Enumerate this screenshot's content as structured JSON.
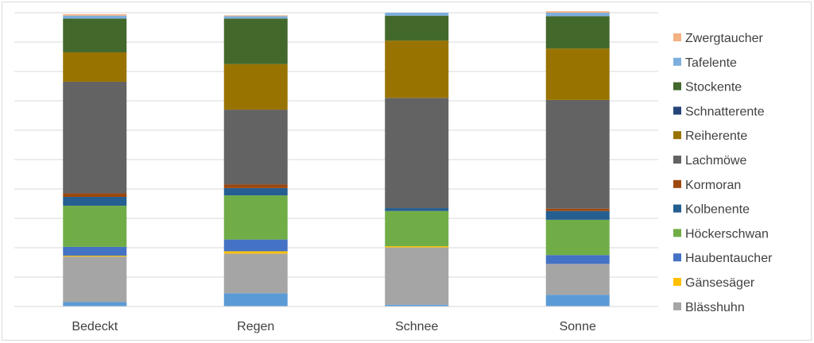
{
  "chart_data": {
    "type": "bar",
    "stacked": true,
    "percent_stacked": true,
    "categories": [
      "Bedeckt",
      "Regen",
      "Schnee",
      "Sonne"
    ],
    "ylim": [
      0,
      1
    ],
    "grid": true,
    "legend_position": "right",
    "series": [
      {
        "name": "Blässhuhn",
        "color": "#a5a5a5",
        "values": [
          0.155,
          0.135,
          0.195,
          0.105
        ]
      },
      {
        "name": "Gänsesäger",
        "color": "#ffc000",
        "values": [
          0.003,
          0.008,
          0.004,
          0.0
        ]
      },
      {
        "name": "Haubentaucher",
        "color": "#4472c4",
        "values": [
          0.03,
          0.04,
          0.0,
          0.03
        ]
      },
      {
        "name": "Höckerschwan",
        "color": "#70ad47",
        "values": [
          0.14,
          0.15,
          0.12,
          0.12
        ]
      },
      {
        "name": "Kolbenente",
        "color": "#255e91",
        "values": [
          0.03,
          0.025,
          0.01,
          0.03
        ]
      },
      {
        "name": "Kormoran",
        "color": "#9e480e",
        "values": [
          0.012,
          0.012,
          0.0,
          0.008
        ]
      },
      {
        "name": "Lachmöwe",
        "color": "#636363",
        "values": [
          0.38,
          0.255,
          0.375,
          0.37
        ]
      },
      {
        "name": "Reiherente",
        "color": "#997300",
        "values": [
          0.1,
          0.155,
          0.195,
          0.175
        ]
      },
      {
        "name": "Schnatterente",
        "color": "#264478",
        "values": [
          0.0,
          0.0,
          0.0,
          0.0
        ]
      },
      {
        "name": "Stockente",
        "color": "#43682b",
        "values": [
          0.115,
          0.155,
          0.085,
          0.11
        ]
      },
      {
        "name": "Tafelente",
        "color": "#7cafdd",
        "values": [
          0.01,
          0.008,
          0.01,
          0.012
        ]
      },
      {
        "name": "Zwergtaucher",
        "color": "#f4b183",
        "values": [
          0.005,
          0.003,
          0.0,
          0.005
        ]
      }
    ],
    "bottom_band": {
      "name": "Tafelente",
      "color": "#5b9bd5",
      "values": [
        0.015,
        0.045,
        0.006,
        0.04
      ]
    }
  }
}
